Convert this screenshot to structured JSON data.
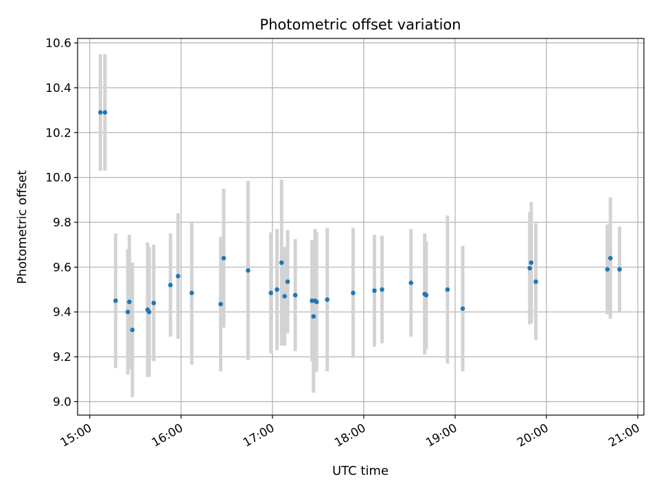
{
  "chart_data": {
    "type": "scatter",
    "title": "Photometric offset variation",
    "xlabel": "UTC time",
    "ylabel": "Photometric offset",
    "x_tick_labels": [
      "15:00",
      "16:00",
      "17:00",
      "18:00",
      "19:00",
      "20:00",
      "21:00"
    ],
    "y_tick_labels": [
      "9.0",
      "9.2",
      "9.4",
      "9.6",
      "9.8",
      "10.0",
      "10.2",
      "10.4",
      "10.6"
    ],
    "xlim": [
      "14:52",
      "21:04"
    ],
    "ylim": [
      8.94,
      10.62
    ],
    "grid": true,
    "legend": "none",
    "marker_color": "#1f77b4",
    "errorbar_color": "#d3d3d3",
    "points": [
      {
        "t": "15:07",
        "y": 10.29,
        "err": 0.26
      },
      {
        "t": "15:10",
        "y": 10.29,
        "err": 0.26
      },
      {
        "t": "15:17",
        "y": 9.45,
        "err": 0.3
      },
      {
        "t": "15:25",
        "y": 9.4,
        "err": 0.28
      },
      {
        "t": "15:26",
        "y": 9.445,
        "err": 0.3
      },
      {
        "t": "15:28",
        "y": 9.32,
        "err": 0.3
      },
      {
        "t": "15:38",
        "y": 9.41,
        "err": 0.3
      },
      {
        "t": "15:39",
        "y": 9.4,
        "err": 0.29
      },
      {
        "t": "15:42",
        "y": 9.44,
        "err": 0.26
      },
      {
        "t": "15:53",
        "y": 9.52,
        "err": 0.23
      },
      {
        "t": "15:58",
        "y": 9.56,
        "err": 0.28
      },
      {
        "t": "16:07",
        "y": 9.485,
        "err": 0.32
      },
      {
        "t": "16:26",
        "y": 9.435,
        "err": 0.3
      },
      {
        "t": "16:28",
        "y": 9.64,
        "err": 0.31
      },
      {
        "t": "16:44",
        "y": 9.585,
        "err": 0.4
      },
      {
        "t": "16:59",
        "y": 9.485,
        "err": 0.27
      },
      {
        "t": "17:03",
        "y": 9.5,
        "err": 0.27
      },
      {
        "t": "17:06",
        "y": 9.62,
        "err": 0.37
      },
      {
        "t": "17:08",
        "y": 9.47,
        "err": 0.22
      },
      {
        "t": "17:10",
        "y": 9.535,
        "err": 0.23
      },
      {
        "t": "17:15",
        "y": 9.475,
        "err": 0.25
      },
      {
        "t": "17:26",
        "y": 9.45,
        "err": 0.27
      },
      {
        "t": "17:27",
        "y": 9.38,
        "err": 0.34
      },
      {
        "t": "17:28",
        "y": 9.45,
        "err": 0.32
      },
      {
        "t": "17:29",
        "y": 9.445,
        "err": 0.31
      },
      {
        "t": "17:36",
        "y": 9.455,
        "err": 0.32
      },
      {
        "t": "17:53",
        "y": 9.485,
        "err": 0.29
      },
      {
        "t": "18:07",
        "y": 9.495,
        "err": 0.25
      },
      {
        "t": "18:12",
        "y": 9.5,
        "err": 0.24
      },
      {
        "t": "18:31",
        "y": 9.53,
        "err": 0.24
      },
      {
        "t": "18:40",
        "y": 9.48,
        "err": 0.27
      },
      {
        "t": "18:41",
        "y": 9.475,
        "err": 0.24
      },
      {
        "t": "18:55",
        "y": 9.5,
        "err": 0.33
      },
      {
        "t": "19:05",
        "y": 9.415,
        "err": 0.28
      },
      {
        "t": "19:49",
        "y": 9.595,
        "err": 0.25
      },
      {
        "t": "19:50",
        "y": 9.62,
        "err": 0.27
      },
      {
        "t": "19:53",
        "y": 9.535,
        "err": 0.26
      },
      {
        "t": "20:40",
        "y": 9.59,
        "err": 0.2
      },
      {
        "t": "20:42",
        "y": 9.64,
        "err": 0.27
      },
      {
        "t": "20:48",
        "y": 9.59,
        "err": 0.19
      }
    ]
  }
}
